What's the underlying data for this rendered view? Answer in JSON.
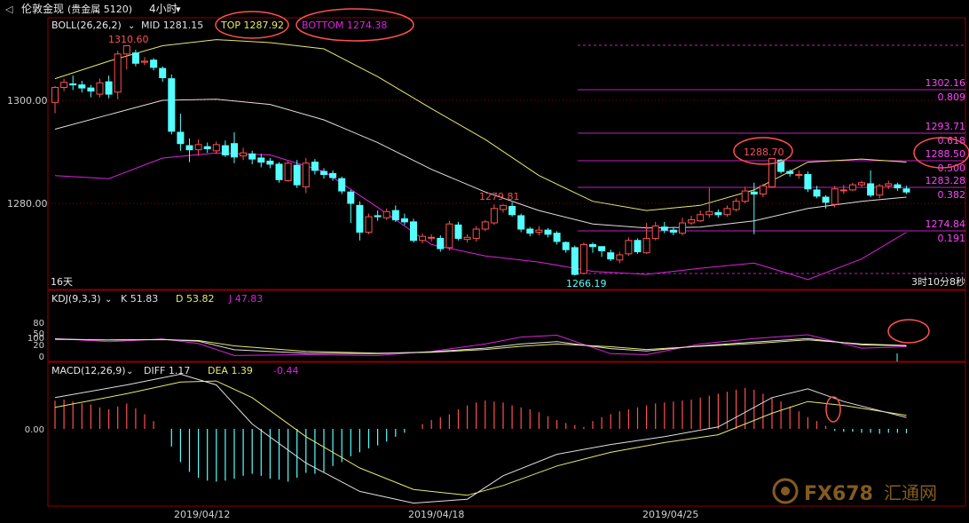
{
  "header": {
    "back_glyph": "◁",
    "instrument": "伦敦金现",
    "instrument_detail": "(贵金属 5120)",
    "period": "4小时",
    "period_arrow": "▾"
  },
  "boll_panel": {
    "label": "BOLL(26,26,2)",
    "mid": "MID 1281.15",
    "top": "TOP 1287.92",
    "bottom": "BOTTOM 1274.38",
    "left_footer": "16天",
    "right_footer": "3时10分8秒",
    "price_ticks": [
      "1300.00",
      "1280.00"
    ],
    "annotations": [
      {
        "text": "1310.60"
      },
      {
        "text": "1279.81"
      },
      {
        "text": "1266.19"
      },
      {
        "text": "1288.70"
      }
    ]
  },
  "fibonacci_levels": [
    {
      "price": "1302.16",
      "ratio": "0.809"
    },
    {
      "price": "1293.71",
      "ratio": "0.618"
    },
    {
      "price": "1288.50",
      "ratio": "0.500"
    },
    {
      "price": "1283.28",
      "ratio": "0.382"
    },
    {
      "price": "1274.84",
      "ratio": "0.191"
    }
  ],
  "kdj_panel": {
    "label": "KDJ(9,3,3)",
    "k": "K 51.83",
    "d": "D 53.82",
    "j": "J 47.83",
    "ticks": [
      "100",
      "80",
      "50",
      "20",
      "0"
    ]
  },
  "macd_panel": {
    "label": "MACD(12,26,9)",
    "diff": "DIFF 1.17",
    "dea": "DEA 1.39",
    "hist": "-0.44",
    "ticks": [
      "0.00"
    ]
  },
  "x_axis": {
    "dates": [
      "2019/04/12",
      "2019/04/18",
      "2019/04/25"
    ]
  },
  "watermark": {
    "text": "FX678",
    "cn": "汇通网"
  },
  "colors": {
    "up": "#ff5050",
    "down": "#54ffff",
    "boll_mid": "#e0e0e0",
    "boll_top": "#e8e870",
    "boll_bottom": "#e020e0",
    "fib_line": "#c020c0",
    "fib_text": "#ff44ff",
    "annot_red": "#ff5050",
    "annot_cyan": "#54ffff",
    "circle": "#ff5050",
    "grid": "#8b0000"
  },
  "chart_data": {
    "type": "candlestick",
    "timeframe": "4H",
    "candles": [
      [
        1299.6,
        1302.5,
        1297.5,
        1302.8
      ],
      [
        1302.5,
        1303.5,
        1301.8,
        1304.2
      ],
      [
        1303.2,
        1303.0,
        1302.0,
        1304.8
      ],
      [
        1303.0,
        1302.4,
        1301.5,
        1303.8
      ],
      [
        1302.4,
        1301.8,
        1300.6,
        1303.0
      ],
      [
        1301.2,
        1303.4,
        1300.6,
        1304.2
      ],
      [
        1303.6,
        1301.2,
        1300.4,
        1304.8
      ],
      [
        1301.6,
        1309.0,
        1300.2,
        1309.6
      ],
      [
        1309.0,
        1310.6,
        1306.0,
        1310.6
      ],
      [
        1309.2,
        1307.2,
        1306.6,
        1309.8
      ],
      [
        1307.4,
        1307.6,
        1306.8,
        1308.4
      ],
      [
        1307.8,
        1306.4,
        1305.8,
        1308.2
      ],
      [
        1306.2,
        1304.4,
        1303.6,
        1306.6
      ],
      [
        1304.2,
        1294.0,
        1293.4,
        1305.0
      ],
      [
        1293.8,
        1291.6,
        1290.2,
        1297.4
      ],
      [
        1291.2,
        1290.4,
        1288.0,
        1292.6
      ],
      [
        1290.4,
        1291.4,
        1289.2,
        1292.4
      ],
      [
        1291.0,
        1290.6,
        1289.8,
        1291.8
      ],
      [
        1290.2,
        1291.4,
        1289.6,
        1292.0
      ],
      [
        1291.2,
        1289.4,
        1289.0,
        1292.2
      ],
      [
        1291.6,
        1289.0,
        1287.8,
        1293.8
      ],
      [
        1289.2,
        1289.8,
        1288.4,
        1290.8
      ],
      [
        1289.6,
        1288.6,
        1287.6,
        1290.2
      ],
      [
        1288.8,
        1288.0,
        1287.0,
        1289.6
      ],
      [
        1288.2,
        1287.6,
        1286.8,
        1288.8
      ],
      [
        1287.6,
        1284.6,
        1284.0,
        1288.0
      ],
      [
        1284.4,
        1287.8,
        1284.2,
        1288.2
      ],
      [
        1287.4,
        1283.6,
        1283.0,
        1288.4
      ],
      [
        1283.2,
        1287.8,
        1282.0,
        1288.8
      ],
      [
        1288.0,
        1286.4,
        1285.6,
        1288.6
      ],
      [
        1286.2,
        1285.6,
        1284.8,
        1286.8
      ],
      [
        1285.8,
        1285.0,
        1284.4,
        1286.4
      ],
      [
        1284.8,
        1282.4,
        1281.8,
        1285.2
      ],
      [
        1282.2,
        1280.0,
        1276.2,
        1282.6
      ],
      [
        1279.6,
        1274.4,
        1272.8,
        1280.4
      ],
      [
        1274.4,
        1277.4,
        1274.0,
        1278.0
      ],
      [
        1277.6,
        1277.4,
        1276.6,
        1278.6
      ],
      [
        1277.2,
        1278.4,
        1276.8,
        1279.0
      ],
      [
        1278.6,
        1276.8,
        1276.4,
        1279.6
      ],
      [
        1277.0,
        1276.4,
        1275.8,
        1278.0
      ],
      [
        1276.4,
        1272.8,
        1272.4,
        1277.0
      ],
      [
        1272.8,
        1273.6,
        1272.2,
        1274.2
      ],
      [
        1273.4,
        1273.4,
        1272.6,
        1274.0
      ],
      [
        1273.2,
        1271.2,
        1270.6,
        1273.8
      ],
      [
        1271.4,
        1276.0,
        1270.8,
        1276.6
      ],
      [
        1275.8,
        1273.2,
        1272.8,
        1276.4
      ],
      [
        1273.0,
        1273.4,
        1272.4,
        1274.0
      ],
      [
        1273.2,
        1275.0,
        1272.6,
        1275.6
      ],
      [
        1275.0,
        1276.4,
        1274.6,
        1276.8
      ],
      [
        1276.2,
        1279.0,
        1275.8,
        1279.8
      ],
      [
        1278.8,
        1279.6,
        1278.2,
        1279.8
      ],
      [
        1279.4,
        1277.8,
        1277.4,
        1280.2
      ],
      [
        1277.6,
        1275.0,
        1274.4,
        1278.0
      ],
      [
        1275.0,
        1274.2,
        1273.6,
        1275.4
      ],
      [
        1274.4,
        1274.8,
        1273.8,
        1275.6
      ],
      [
        1274.8,
        1274.0,
        1273.4,
        1275.2
      ],
      [
        1274.2,
        1272.6,
        1272.0,
        1274.6
      ],
      [
        1272.4,
        1271.0,
        1270.4,
        1272.6
      ],
      [
        1271.4,
        1266.2,
        1266.0,
        1271.8
      ],
      [
        1266.4,
        1272.0,
        1266.2,
        1272.4
      ],
      [
        1272.0,
        1271.6,
        1270.4,
        1272.4
      ],
      [
        1271.6,
        1270.8,
        1269.6,
        1271.6
      ],
      [
        1270.4,
        1269.2,
        1268.8,
        1271.0
      ],
      [
        1269.0,
        1270.0,
        1268.4,
        1270.6
      ],
      [
        1270.2,
        1272.8,
        1269.8,
        1273.4
      ],
      [
        1272.8,
        1270.6,
        1270.2,
        1273.2
      ],
      [
        1270.4,
        1273.2,
        1270.2,
        1276.2
      ],
      [
        1273.2,
        1275.6,
        1272.8,
        1276.4
      ],
      [
        1275.4,
        1274.8,
        1274.2,
        1276.4
      ],
      [
        1274.8,
        1274.4,
        1273.8,
        1275.4
      ],
      [
        1274.2,
        1276.2,
        1273.8,
        1277.2
      ],
      [
        1276.2,
        1276.8,
        1275.8,
        1277.6
      ],
      [
        1276.6,
        1277.8,
        1276.4,
        1278.6
      ],
      [
        1277.8,
        1278.4,
        1277.2,
        1283.0
      ],
      [
        1278.2,
        1277.8,
        1277.2,
        1278.8
      ],
      [
        1277.8,
        1279.0,
        1277.4,
        1279.6
      ],
      [
        1278.8,
        1280.4,
        1278.4,
        1281.0
      ],
      [
        1280.4,
        1282.4,
        1280.0,
        1283.2
      ],
      [
        1282.2,
        1281.8,
        1274.0,
        1284.0
      ],
      [
        1281.8,
        1283.4,
        1281.2,
        1283.8
      ],
      [
        1283.2,
        1288.7,
        1283.0,
        1288.7
      ],
      [
        1288.4,
        1286.2,
        1285.8,
        1288.6
      ],
      [
        1286.2,
        1285.8,
        1285.2,
        1286.6
      ],
      [
        1285.6,
        1285.6,
        1284.8,
        1286.4
      ],
      [
        1285.6,
        1282.8,
        1282.2,
        1286.2
      ],
      [
        1282.6,
        1281.4,
        1281.0,
        1283.4
      ],
      [
        1281.2,
        1280.2,
        1279.0,
        1281.6
      ],
      [
        1279.8,
        1282.8,
        1279.2,
        1283.4
      ],
      [
        1282.6,
        1282.6,
        1281.8,
        1283.6
      ],
      [
        1282.6,
        1283.6,
        1282.4,
        1284.0
      ],
      [
        1283.6,
        1284.0,
        1283.2,
        1284.4
      ],
      [
        1283.8,
        1281.6,
        1281.2,
        1286.4
      ],
      [
        1281.6,
        1283.4,
        1281.0,
        1283.8
      ],
      [
        1283.4,
        1283.8,
        1282.8,
        1284.4
      ],
      [
        1283.6,
        1283.0,
        1282.4,
        1284.0
      ],
      [
        1282.8,
        1282.2,
        1281.8,
        1283.4
      ]
    ],
    "boll": {
      "mid": [
        [
          0,
          1294.4
        ],
        [
          6,
          1297.2
        ],
        [
          12,
          1300.0
        ],
        [
          18,
          1300.2
        ],
        [
          24,
          1299.2
        ],
        [
          30,
          1296.2
        ],
        [
          36,
          1291.8
        ],
        [
          42,
          1286.6
        ],
        [
          48,
          1282.2
        ],
        [
          54,
          1278.6
        ],
        [
          60,
          1276.0
        ],
        [
          66,
          1275.2
        ],
        [
          72,
          1275.4
        ],
        [
          78,
          1276.6
        ],
        [
          84,
          1279.0
        ],
        [
          90,
          1280.4
        ],
        [
          95,
          1281.2
        ]
      ],
      "upper": [
        [
          0,
          1304.2
        ],
        [
          6,
          1307.6
        ],
        [
          12,
          1310.6
        ],
        [
          18,
          1311.8
        ],
        [
          24,
          1311.2
        ],
        [
          30,
          1310.0
        ],
        [
          36,
          1304.6
        ],
        [
          42,
          1298.4
        ],
        [
          48,
          1292.4
        ],
        [
          54,
          1285.4
        ],
        [
          60,
          1280.4
        ],
        [
          66,
          1278.6
        ],
        [
          72,
          1279.6
        ],
        [
          78,
          1282.6
        ],
        [
          84,
          1288.0
        ],
        [
          90,
          1288.6
        ],
        [
          95,
          1288.0
        ]
      ],
      "lower": [
        [
          0,
          1285.4
        ],
        [
          6,
          1284.8
        ],
        [
          12,
          1288.8
        ],
        [
          18,
          1289.8
        ],
        [
          24,
          1289.4
        ],
        [
          30,
          1286.2
        ],
        [
          36,
          1279.2
        ],
        [
          42,
          1272.0
        ],
        [
          48,
          1269.8
        ],
        [
          54,
          1268.6
        ],
        [
          60,
          1266.8
        ],
        [
          66,
          1266.2
        ],
        [
          72,
          1267.4
        ],
        [
          78,
          1268.4
        ],
        [
          84,
          1265.2
        ],
        [
          90,
          1269.2
        ],
        [
          95,
          1274.4
        ]
      ]
    },
    "fibonacci": [
      {
        "ratio": 0.809,
        "price": 1302.16
      },
      {
        "ratio": 0.618,
        "price": 1293.71
      },
      {
        "ratio": 0.5,
        "price": 1288.5
      },
      {
        "ratio": 0.382,
        "price": 1283.28
      },
      {
        "ratio": 0.191,
        "price": 1274.84
      }
    ],
    "kdj": {
      "K": [
        [
          0,
          82
        ],
        [
          6,
          77
        ],
        [
          12,
          80
        ],
        [
          16,
          72
        ],
        [
          20,
          35
        ],
        [
          28,
          20
        ],
        [
          36,
          18
        ],
        [
          42,
          26
        ],
        [
          48,
          42
        ],
        [
          52,
          60
        ],
        [
          56,
          70
        ],
        [
          62,
          40
        ],
        [
          66,
          30
        ],
        [
          72,
          52
        ],
        [
          78,
          68
        ],
        [
          84,
          84
        ],
        [
          90,
          56
        ],
        [
          95,
          52
        ]
      ],
      "D": [
        [
          0,
          80
        ],
        [
          6,
          78
        ],
        [
          12,
          79
        ],
        [
          16,
          75
        ],
        [
          20,
          52
        ],
        [
          28,
          28
        ],
        [
          36,
          20
        ],
        [
          42,
          24
        ],
        [
          48,
          36
        ],
        [
          52,
          50
        ],
        [
          56,
          60
        ],
        [
          62,
          48
        ],
        [
          66,
          36
        ],
        [
          72,
          50
        ],
        [
          78,
          62
        ],
        [
          84,
          78
        ],
        [
          90,
          60
        ],
        [
          95,
          54
        ]
      ],
      "J": [
        [
          0,
          84
        ],
        [
          6,
          70
        ],
        [
          12,
          82
        ],
        [
          16,
          62
        ],
        [
          20,
          10
        ],
        [
          28,
          14
        ],
        [
          36,
          10
        ],
        [
          42,
          28
        ],
        [
          48,
          60
        ],
        [
          52,
          90
        ],
        [
          56,
          98
        ],
        [
          62,
          18
        ],
        [
          66,
          14
        ],
        [
          72,
          60
        ],
        [
          78,
          84
        ],
        [
          84,
          100
        ],
        [
          90,
          42
        ],
        [
          95,
          48
        ]
      ]
    },
    "macd": {
      "hist": [
        2.9,
        3.0,
        2.8,
        2.6,
        2.5,
        2.2,
        2.0,
        2.3,
        2.6,
        2.1,
        1.5,
        0.8,
        0.0,
        -1.8,
        -3.4,
        -4.4,
        -5.0,
        -5.3,
        -5.4,
        -5.3,
        -5.1,
        -4.8,
        -4.6,
        -4.8,
        -5.1,
        -5.2,
        -5.4,
        -5.0,
        -4.5,
        -4.6,
        -4.4,
        -3.8,
        -3.4,
        -2.8,
        -2.4,
        -2.0,
        -1.7,
        -1.3,
        -0.8,
        -0.4,
        0.0,
        0.5,
        0.9,
        1.2,
        1.5,
        2.0,
        2.4,
        2.7,
        2.9,
        2.8,
        2.7,
        2.4,
        2.2,
        2.0,
        1.7,
        1.3,
        0.9,
        0.6,
        0.4,
        0.2,
        0.8,
        1.2,
        1.5,
        1.8,
        2.0,
        2.2,
        2.4,
        2.6,
        2.7,
        2.8,
        2.9,
        3.0,
        3.2,
        3.4,
        3.6,
        3.8,
        4.0,
        4.2,
        4.0,
        3.6,
        3.2,
        2.8,
        2.3,
        1.8,
        1.2,
        0.8,
        0.3,
        -0.2,
        -0.3,
        -0.3,
        -0.4,
        -0.4,
        -0.5,
        -0.4,
        -0.4,
        -0.44
      ],
      "DIFF": [
        [
          0,
          3.2
        ],
        [
          8,
          4.5
        ],
        [
          14,
          5.6
        ],
        [
          18,
          4.5
        ],
        [
          22,
          0.5
        ],
        [
          28,
          -3.5
        ],
        [
          34,
          -6.4
        ],
        [
          40,
          -7.6
        ],
        [
          46,
          -7.2
        ],
        [
          50,
          -4.8
        ],
        [
          56,
          -2.6
        ],
        [
          62,
          -1.6
        ],
        [
          68,
          -0.8
        ],
        [
          74,
          0.2
        ],
        [
          80,
          3.2
        ],
        [
          84,
          4.1
        ],
        [
          88,
          2.8
        ],
        [
          95,
          1.17
        ]
      ],
      "DEA": [
        [
          0,
          2.2
        ],
        [
          8,
          3.6
        ],
        [
          14,
          4.8
        ],
        [
          18,
          4.9
        ],
        [
          22,
          3.2
        ],
        [
          28,
          -0.8
        ],
        [
          34,
          -4.0
        ],
        [
          40,
          -6.2
        ],
        [
          46,
          -6.8
        ],
        [
          50,
          -5.8
        ],
        [
          56,
          -3.8
        ],
        [
          62,
          -2.4
        ],
        [
          68,
          -1.4
        ],
        [
          74,
          -0.6
        ],
        [
          80,
          1.6
        ],
        [
          84,
          2.8
        ],
        [
          88,
          2.4
        ],
        [
          95,
          1.39
        ]
      ]
    }
  }
}
